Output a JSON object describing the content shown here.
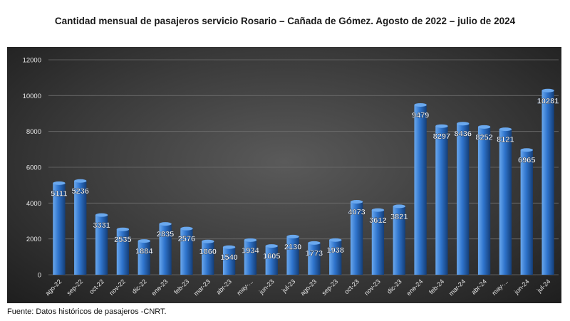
{
  "title": "Cantidad mensual de pasajeros servicio Rosario – Cañada de Gómez. Agosto de 2022 – julio de 2024",
  "source": "Fuente: Datos históricos de pasajeros  -CNRT.",
  "colors": {
    "bar_light": "#6aa8ee",
    "bar_mid": "#2f74cc",
    "bar_dark": "#143e78",
    "grid": "#6e6e6e",
    "label": "#ffffff",
    "axis_text": "#e8e8e8"
  },
  "chart_data": {
    "type": "bar",
    "title": "Cantidad mensual de pasajeros servicio Rosario – Cañada de Gómez. Agosto de 2022 – julio de 2024",
    "categories": [
      "ago-22",
      "sep-22",
      "oct-22",
      "nov-22",
      "dic-22",
      "ene-23",
      "feb-23",
      "mar-23",
      "abr-23",
      "may-...",
      "jun-23",
      "jul-23",
      "ago-23",
      "sep-23",
      "oct-23",
      "nov-23",
      "dic-23",
      "ene-24",
      "feb-24",
      "mar-24",
      "abr-24",
      "may-...",
      "jun-24",
      "jul-24"
    ],
    "values": [
      5111,
      5236,
      3331,
      2535,
      1884,
      2835,
      2576,
      1860,
      1540,
      1934,
      1605,
      2130,
      1773,
      1938,
      4073,
      3612,
      3821,
      9479,
      8297,
      8436,
      8252,
      8121,
      6965,
      10281
    ],
    "ylim": [
      0,
      12000
    ],
    "yticks": [
      0,
      2000,
      4000,
      6000,
      8000,
      10000,
      12000
    ],
    "grid": true,
    "legend": "none",
    "data_labels": true
  }
}
